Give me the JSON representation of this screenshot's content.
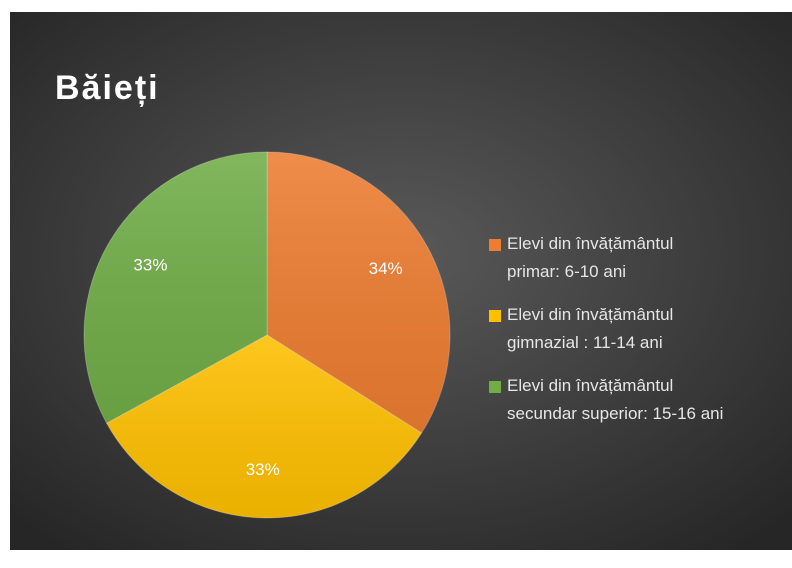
{
  "chart_data": {
    "type": "pie",
    "title": "Băieți",
    "categories": [
      "Elevi din învățământul primar: 6-10 ani",
      "Elevi din învățământul gimnazial : 11-14 ani",
      "Elevi din învățământul secundar superior: 15-16 ani"
    ],
    "values": [
      34,
      33,
      33
    ],
    "value_labels": [
      "34%",
      "33%",
      "33%"
    ],
    "colors": [
      "#ed7d31",
      "#ffc000",
      "#70ad47"
    ],
    "legend": "right"
  }
}
